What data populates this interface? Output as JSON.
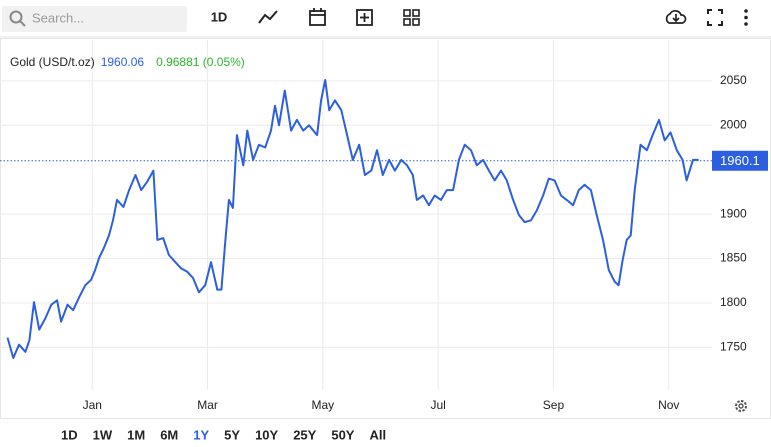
{
  "ui": {
    "search_placeholder": "Search...",
    "interval": "1D",
    "ranges": [
      "1D",
      "1W",
      "1M",
      "6M",
      "1Y",
      "5Y",
      "10Y",
      "25Y",
      "50Y",
      "All"
    ],
    "active_range": 4
  },
  "chart_data": {
    "type": "line",
    "title": "Gold (USD/t.oz)",
    "last_price": 1960.06,
    "change": "0.96881 (0.05%)",
    "last_price_axis_label": "1960.1",
    "color": "#2c5fe0",
    "price_color": "#2c5fe0",
    "change_color": "#2db52d",
    "grid": true,
    "x": [
      -1.47,
      -1.37,
      -1.27,
      -1.16,
      -1.09,
      -1.01,
      -0.92,
      -0.81,
      -0.71,
      -0.61,
      -0.54,
      -0.43,
      -0.33,
      -0.23,
      -0.12,
      -0.02,
      0.05,
      0.12,
      0.19,
      0.29,
      0.36,
      0.43,
      0.54,
      0.64,
      0.75,
      0.85,
      0.95,
      1.06,
      1.13,
      1.23,
      1.33,
      1.44,
      1.54,
      1.65,
      1.75,
      1.85,
      1.96,
      2.06,
      2.17,
      2.24,
      2.31,
      2.37,
      2.44,
      2.51,
      2.62,
      2.69,
      2.79,
      2.89,
      3.0,
      3.1,
      3.17,
      3.24,
      3.34,
      3.45,
      3.55,
      3.66,
      3.76,
      3.9,
      3.97,
      4.04,
      4.11,
      4.21,
      4.32,
      4.42,
      4.52,
      4.63,
      4.73,
      4.84,
      4.94,
      5.04,
      5.15,
      5.25,
      5.36,
      5.46,
      5.56,
      5.63,
      5.74,
      5.84,
      5.94,
      6.05,
      6.15,
      6.26,
      6.36,
      6.46,
      6.57,
      6.67,
      6.78,
      6.88,
      6.98,
      7.09,
      7.19,
      7.3,
      7.4,
      7.5,
      7.61,
      7.71,
      7.82,
      7.92,
      8.02,
      8.13,
      8.23,
      8.34,
      8.44,
      8.54,
      8.65,
      8.75,
      8.86,
      8.96,
      9.06,
      9.13,
      9.2,
      9.27,
      9.34,
      9.41,
      9.51,
      9.62,
      9.72,
      9.83,
      9.93,
      10.03,
      10.14,
      10.24,
      10.31,
      10.42,
      10.52
    ],
    "values": [
      1761,
      1738,
      1753,
      1745,
      1758,
      1801,
      1770,
      1783,
      1798,
      1803,
      1779,
      1798,
      1792,
      1806,
      1820,
      1826,
      1837,
      1851,
      1860,
      1876,
      1893,
      1916,
      1908,
      1927,
      1944,
      1927,
      1936,
      1949,
      1871,
      1873,
      1854,
      1846,
      1839,
      1835,
      1828,
      1812,
      1820,
      1846,
      1815,
      1815,
      1871,
      1916,
      1907,
      1989,
      1955,
      1994,
      1961,
      1978,
      1975,
      1994,
      2022,
      2000,
      2039,
      1994,
      2006,
      1994,
      2000,
      1989,
      2028,
      2051,
      2017,
      2028,
      2017,
      1989,
      1961,
      1978,
      1944,
      1949,
      1972,
      1944,
      1961,
      1949,
      1961,
      1955,
      1944,
      1916,
      1921,
      1910,
      1921,
      1916,
      1927,
      1927,
      1961,
      1978,
      1972,
      1955,
      1961,
      1949,
      1938,
      1949,
      1938,
      1916,
      1899,
      1891,
      1893,
      1904,
      1921,
      1940,
      1938,
      1921,
      1916,
      1910,
      1927,
      1933,
      1927,
      1899,
      1871,
      1837,
      1824,
      1820,
      1848,
      1871,
      1876,
      1927,
      1978,
      1972,
      1989,
      2006,
      1983,
      1992,
      1972,
      1961,
      1938,
      1961,
      1961
    ],
    "xlim": [
      -1.6,
      10.75
    ],
    "xticks": [
      {
        "value": 0,
        "label": "Jan"
      },
      {
        "value": 2,
        "label": "Mar"
      },
      {
        "value": 4,
        "label": "May"
      },
      {
        "value": 6,
        "label": "Jul"
      },
      {
        "value": 8,
        "label": "Sep"
      },
      {
        "value": 10,
        "label": "Nov"
      }
    ],
    "ylim": [
      1702,
      2096
    ],
    "yticks": [
      1750,
      1800,
      1850,
      1900,
      2000,
      2050
    ]
  }
}
